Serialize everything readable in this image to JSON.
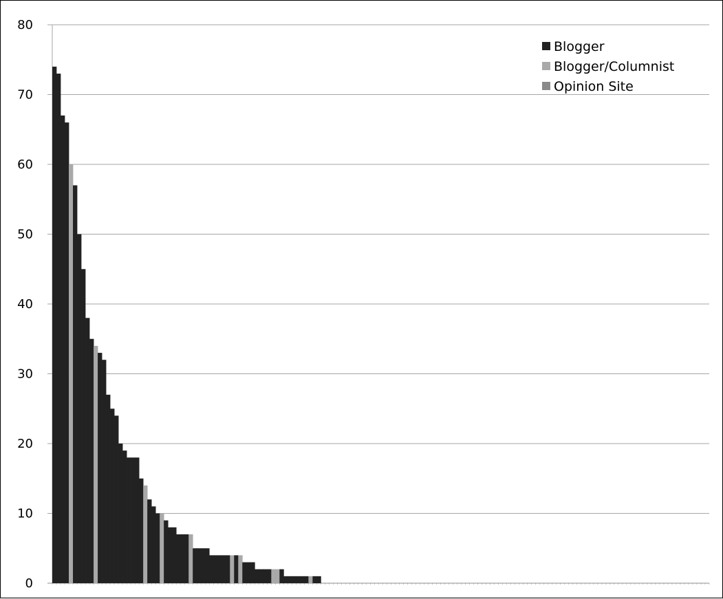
{
  "chart_data": {
    "type": "bar",
    "title": "",
    "xlabel": "",
    "ylabel": "",
    "ylim": [
      0,
      80
    ],
    "yticks": [
      0,
      10,
      20,
      30,
      40,
      50,
      60,
      70,
      80
    ],
    "grid": true,
    "legend_position": "top-right",
    "legend": [
      {
        "name": "Blogger",
        "color": "#222222"
      },
      {
        "name": "Blogger/Columnist",
        "color": "#a9a9a9"
      },
      {
        "name": "Opinion Site",
        "color": "#8a8a8a"
      }
    ],
    "series": [
      {
        "name": "Blogger",
        "color": "#222222",
        "values": [
          74,
          73,
          67,
          66,
          0,
          57,
          50,
          45,
          38,
          35,
          0,
          33,
          32,
          27,
          25,
          24,
          20,
          19,
          18,
          18,
          18,
          15,
          0,
          12,
          11,
          10,
          0,
          9,
          8,
          8,
          7,
          7,
          7,
          0,
          5,
          5,
          5,
          5,
          4,
          4,
          4,
          4,
          4,
          0,
          4,
          0,
          3,
          3,
          3,
          2,
          2,
          2,
          2,
          0,
          0,
          2,
          1,
          1,
          1,
          1,
          1,
          1,
          0,
          1,
          1
        ]
      },
      {
        "name": "Blogger/Columnist",
        "color": "#a9a9a9",
        "values": [
          0,
          0,
          0,
          0,
          60,
          0,
          0,
          0,
          0,
          0,
          34,
          0,
          0,
          0,
          0,
          0,
          0,
          0,
          0,
          0,
          0,
          0,
          14,
          0,
          0,
          0,
          10,
          0,
          0,
          0,
          0,
          0,
          0,
          7,
          0,
          0,
          0,
          0,
          0,
          0,
          0,
          0,
          0,
          4,
          0,
          4,
          0,
          0,
          0,
          0,
          0,
          0,
          0,
          2,
          2,
          0,
          0,
          0,
          0,
          0,
          0,
          0,
          1,
          0,
          0
        ]
      },
      {
        "name": "Opinion Site",
        "color": "#8a8a8a",
        "values": [
          0,
          0,
          0,
          0,
          0,
          0,
          0,
          0,
          0,
          0,
          0,
          0,
          0,
          0,
          0,
          0,
          0,
          0,
          0,
          0,
          0,
          0,
          0,
          0,
          0,
          0,
          0,
          0,
          0,
          0,
          0,
          0,
          0,
          0,
          0,
          0,
          0,
          0,
          0,
          0,
          0,
          0,
          0,
          0,
          0,
          0,
          0,
          0,
          0,
          0,
          0,
          0,
          0,
          0,
          0,
          0,
          0,
          0,
          0,
          0,
          0,
          0,
          0,
          0,
          0
        ]
      }
    ],
    "total_categories": 159
  }
}
